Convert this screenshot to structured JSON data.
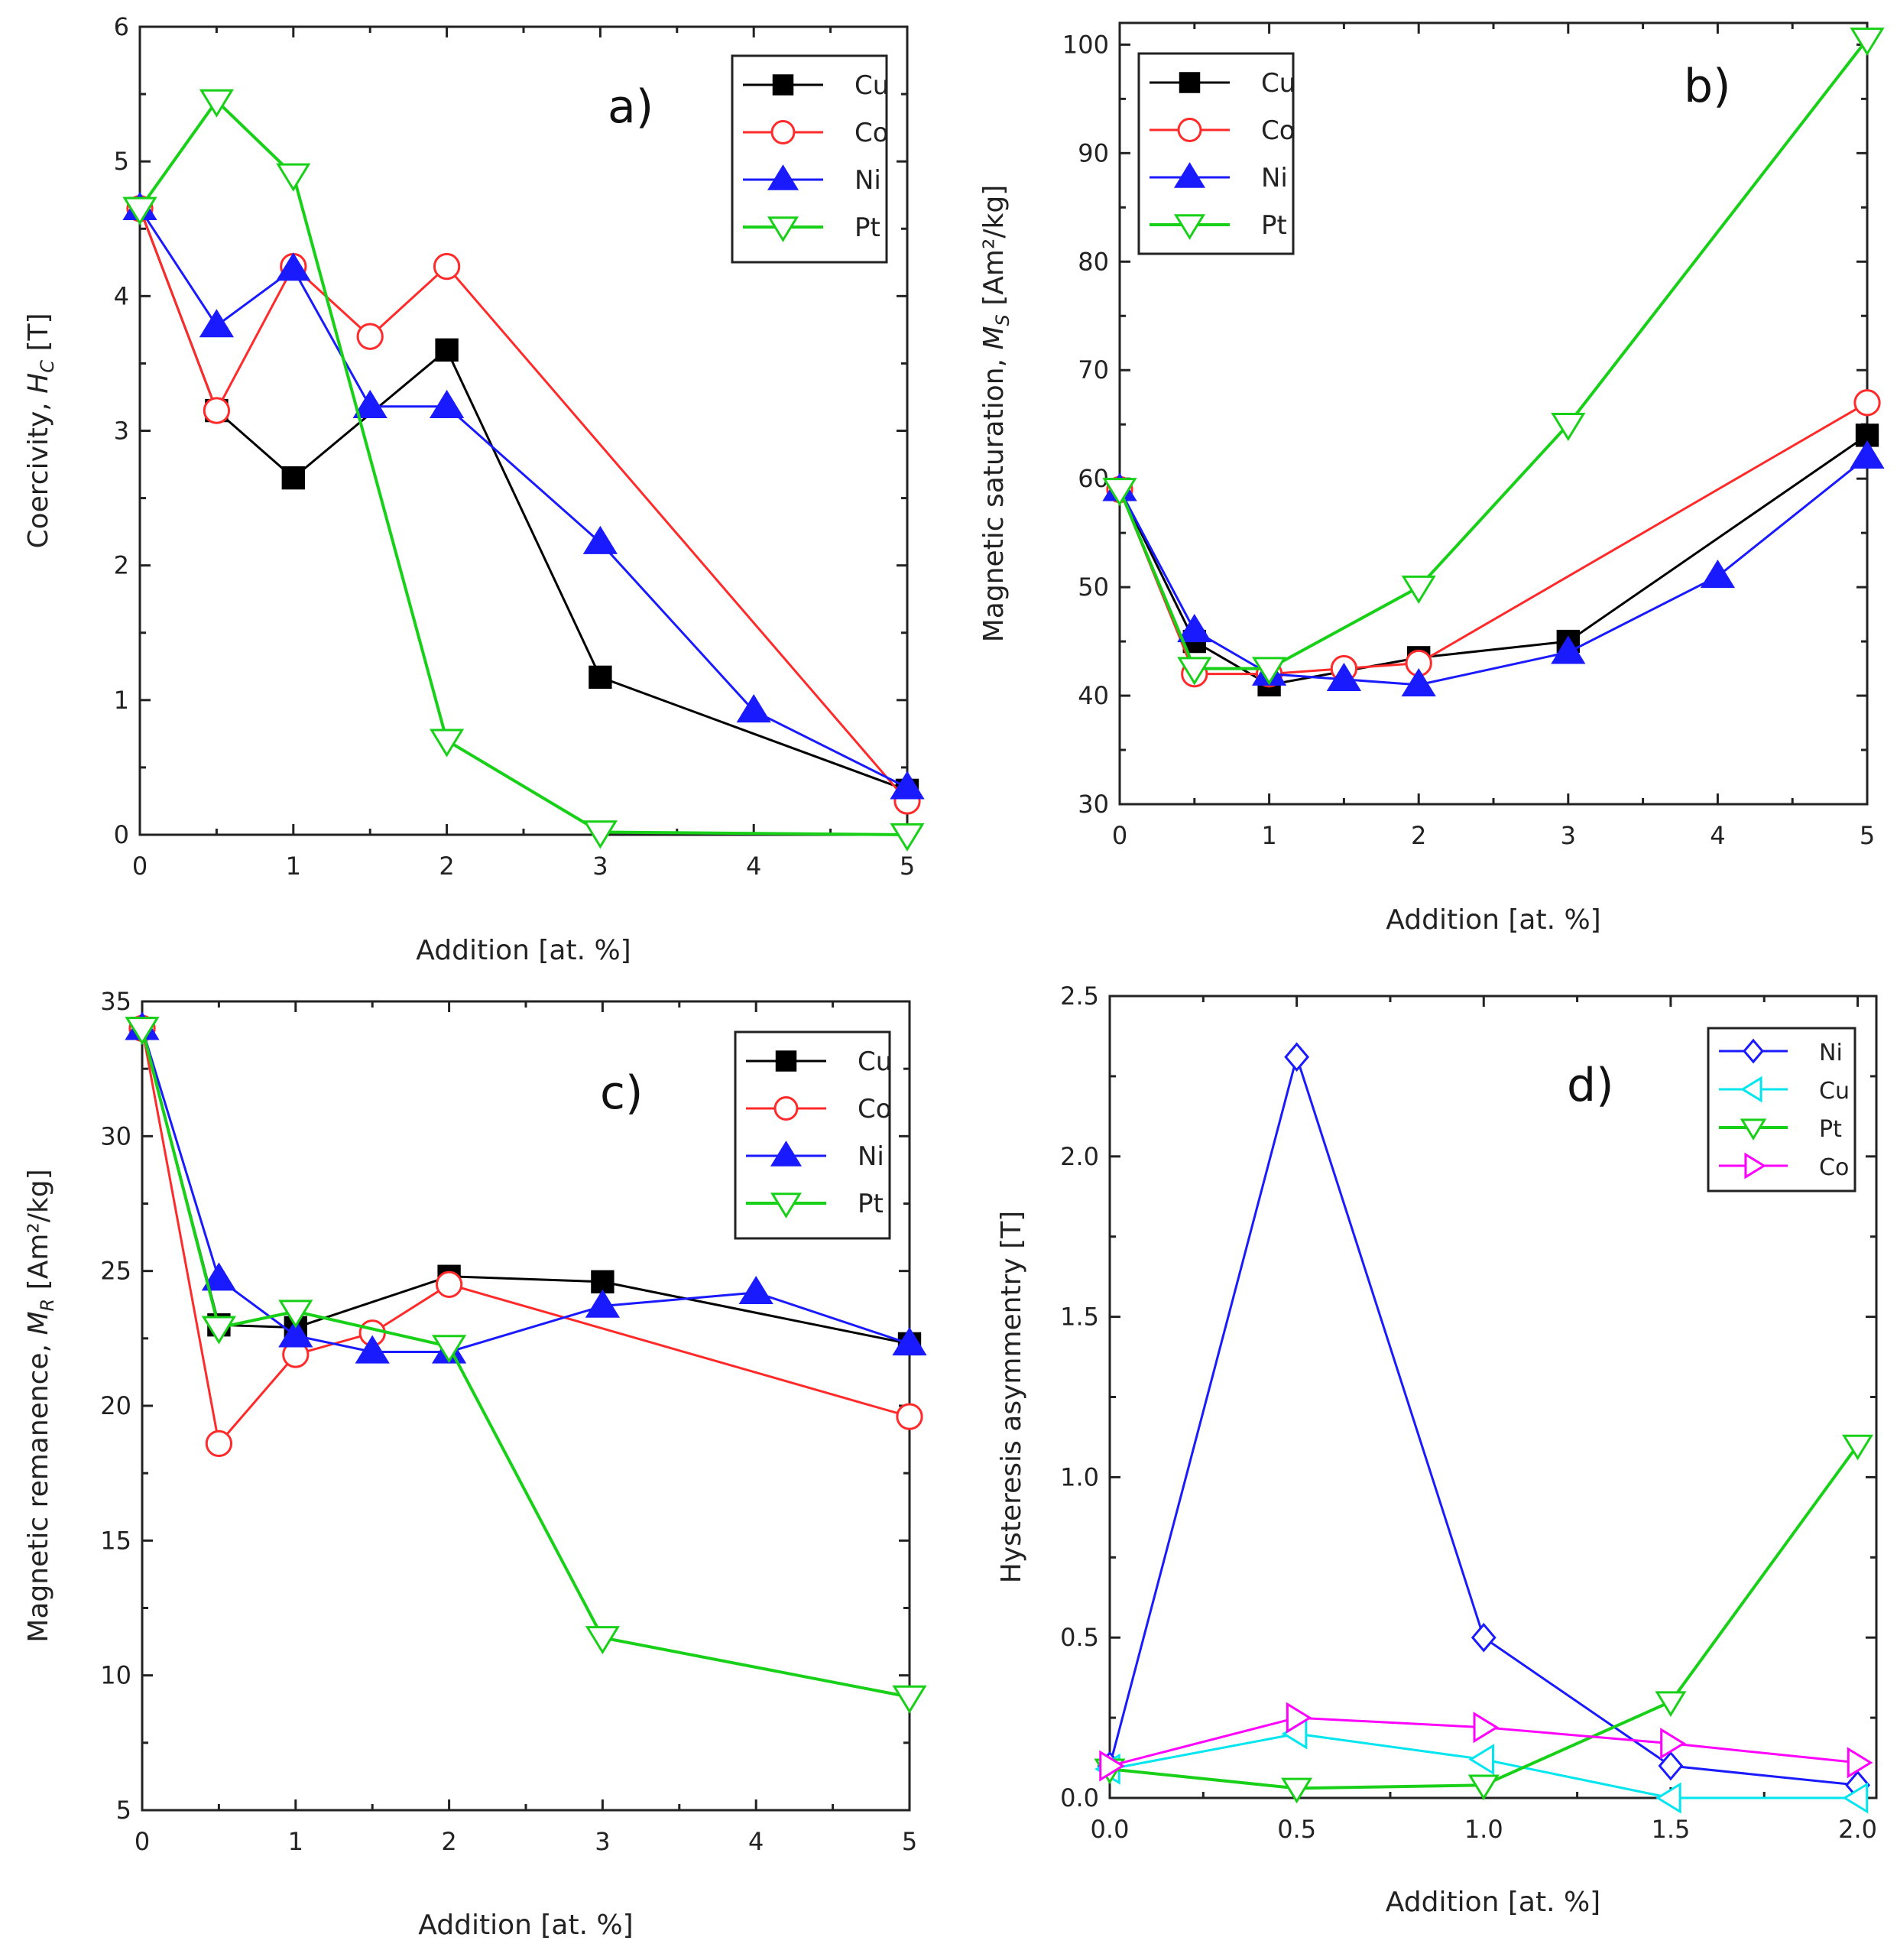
{
  "chart_data": [
    {
      "id": "a",
      "type": "line",
      "panel_label": "a)",
      "xlabel": "Addition [at. %]",
      "ylabel_main": "Coercivity, ",
      "ylabel_sym": "H",
      "ylabel_sub": "C",
      "ylabel_unit": " [T]",
      "xlim": [
        0,
        5
      ],
      "ylim": [
        0,
        6
      ],
      "xticks": [
        0,
        1,
        2,
        3,
        4,
        5
      ],
      "yticks": [
        0,
        1,
        2,
        3,
        4,
        5,
        6
      ],
      "legend_position": "top-right",
      "series": [
        {
          "name": "Cu",
          "color": "#000000",
          "marker": "square",
          "filled": true,
          "x": [
            0,
            0.5,
            1,
            2,
            3,
            5
          ],
          "y": [
            4.65,
            3.15,
            2.65,
            3.6,
            1.17,
            0.33
          ]
        },
        {
          "name": "Co",
          "color": "#ff2a2a",
          "marker": "circle",
          "filled": false,
          "x": [
            0,
            0.5,
            1,
            1.5,
            2,
            5
          ],
          "y": [
            4.65,
            3.15,
            4.22,
            3.7,
            4.22,
            0.25
          ]
        },
        {
          "name": "Ni",
          "color": "#1a1aff",
          "marker": "triangle-up",
          "filled": true,
          "x": [
            0,
            0.5,
            1,
            1.5,
            2,
            3,
            4,
            5
          ],
          "y": [
            4.65,
            3.78,
            4.2,
            3.18,
            3.18,
            2.17,
            0.92,
            0.35
          ]
        },
        {
          "name": "Pt",
          "color": "#19d019",
          "marker": "triangle-down",
          "filled": false,
          "x": [
            0,
            0.5,
            1,
            2,
            3,
            5
          ],
          "y": [
            4.65,
            5.45,
            4.9,
            0.7,
            0.02,
            0.0
          ]
        }
      ]
    },
    {
      "id": "b",
      "type": "line",
      "panel_label": "b)",
      "xlabel": "Addition [at. %]",
      "ylabel_main": "Magnetic saturation, ",
      "ylabel_sym": "M",
      "ylabel_sub": "S",
      "ylabel_unit": " [Am²/kg]",
      "xlim": [
        0,
        5
      ],
      "ylim": [
        30,
        102
      ],
      "xticks": [
        0,
        1,
        2,
        3,
        4,
        5
      ],
      "yticks": [
        30,
        40,
        50,
        60,
        70,
        80,
        90,
        100
      ],
      "legend_position": "top-left",
      "series": [
        {
          "name": "Cu",
          "color": "#000000",
          "marker": "square",
          "filled": true,
          "x": [
            0,
            0.5,
            1,
            2,
            3,
            5
          ],
          "y": [
            59,
            45,
            41,
            43.5,
            45,
            64
          ]
        },
        {
          "name": "Co",
          "color": "#ff2a2a",
          "marker": "circle",
          "filled": false,
          "x": [
            0,
            0.5,
            1,
            1.5,
            2,
            5
          ],
          "y": [
            59,
            42,
            42,
            42.5,
            43,
            67
          ]
        },
        {
          "name": "Ni",
          "color": "#1a1aff",
          "marker": "triangle-up",
          "filled": true,
          "x": [
            0,
            0.5,
            1,
            1.5,
            2,
            3,
            4,
            5
          ],
          "y": [
            59,
            46,
            42,
            41.5,
            41,
            44,
            51,
            62
          ]
        },
        {
          "name": "Pt",
          "color": "#19d019",
          "marker": "triangle-down",
          "filled": false,
          "x": [
            0,
            0.5,
            1,
            2,
            3,
            5
          ],
          "y": [
            59,
            42.5,
            42.5,
            50,
            65,
            100.5
          ]
        }
      ]
    },
    {
      "id": "c",
      "type": "line",
      "panel_label": "c)",
      "xlabel": "Addition [at. %]",
      "ylabel_main": "Magnetic remanence, ",
      "ylabel_sym": "M",
      "ylabel_sub": "R",
      "ylabel_unit": " [Am²/kg]",
      "xlim": [
        0,
        5
      ],
      "ylim": [
        5,
        35
      ],
      "xticks": [
        0,
        1,
        2,
        3,
        4,
        5
      ],
      "yticks": [
        5,
        10,
        15,
        20,
        25,
        30,
        35
      ],
      "legend_position": "top-right",
      "series": [
        {
          "name": "Cu",
          "color": "#000000",
          "marker": "square",
          "filled": true,
          "x": [
            0,
            0.5,
            1,
            2,
            3,
            5
          ],
          "y": [
            34,
            23,
            22.9,
            24.8,
            24.6,
            22.3
          ]
        },
        {
          "name": "Co",
          "color": "#ff2a2a",
          "marker": "circle",
          "filled": false,
          "x": [
            0,
            0.5,
            1,
            1.5,
            2,
            5
          ],
          "y": [
            34,
            18.6,
            21.9,
            22.7,
            24.5,
            19.6
          ]
        },
        {
          "name": "Ni",
          "color": "#1a1aff",
          "marker": "triangle-up",
          "filled": true,
          "x": [
            0,
            0.5,
            1,
            1.5,
            2,
            3,
            4,
            5
          ],
          "y": [
            34,
            24.7,
            22.6,
            22.0,
            22.0,
            23.7,
            24.2,
            22.3
          ]
        },
        {
          "name": "Pt",
          "color": "#19d019",
          "marker": "triangle-down",
          "filled": false,
          "x": [
            0,
            0.5,
            1,
            2,
            3,
            5
          ],
          "y": [
            34,
            22.9,
            23.5,
            22.2,
            11.4,
            9.2
          ]
        }
      ]
    },
    {
      "id": "d",
      "type": "line",
      "panel_label": "d)",
      "xlabel": "Addition [at. %]",
      "ylabel_main": "Hysteresis asymmentry [T]",
      "ylabel_sym": "",
      "ylabel_sub": "",
      "ylabel_unit": "",
      "xlim": [
        0,
        2.05
      ],
      "ylim": [
        0,
        2.5
      ],
      "xticks": [
        0.0,
        0.5,
        1.0,
        1.5,
        2.0
      ],
      "xtick_labels": [
        "0.0",
        "0.5",
        "1.0",
        "1.5",
        "2.0"
      ],
      "yticks": [
        0.0,
        0.5,
        1.0,
        1.5,
        2.0,
        2.5
      ],
      "ytick_labels": [
        "0.0",
        "0.5",
        "1.0",
        "1.5",
        "2.0",
        "2.5"
      ],
      "legend_position": "top-right",
      "series": [
        {
          "name": "Ni",
          "color": "#1a1aff",
          "marker": "diamond",
          "filled": false,
          "x": [
            0,
            0.5,
            1.0,
            1.5,
            2.0
          ],
          "y": [
            0.1,
            2.31,
            0.5,
            0.1,
            0.04
          ]
        },
        {
          "name": "Cu",
          "color": "#00e5ee",
          "marker": "triangle-left",
          "filled": false,
          "x": [
            0,
            0.5,
            1.0,
            1.5,
            2.0
          ],
          "y": [
            0.09,
            0.2,
            0.12,
            0.0,
            0.0
          ]
        },
        {
          "name": "Pt",
          "color": "#19d019",
          "marker": "triangle-down",
          "filled": false,
          "x": [
            0,
            0.5,
            1.0,
            1.5,
            2.0
          ],
          "y": [
            0.09,
            0.03,
            0.04,
            0.3,
            1.1
          ]
        },
        {
          "name": "Co",
          "color": "#ff00ff",
          "marker": "triangle-right",
          "filled": false,
          "x": [
            0,
            0.5,
            1.0,
            1.5,
            2.0
          ],
          "y": [
            0.1,
            0.25,
            0.22,
            0.17,
            0.11
          ]
        }
      ]
    }
  ]
}
